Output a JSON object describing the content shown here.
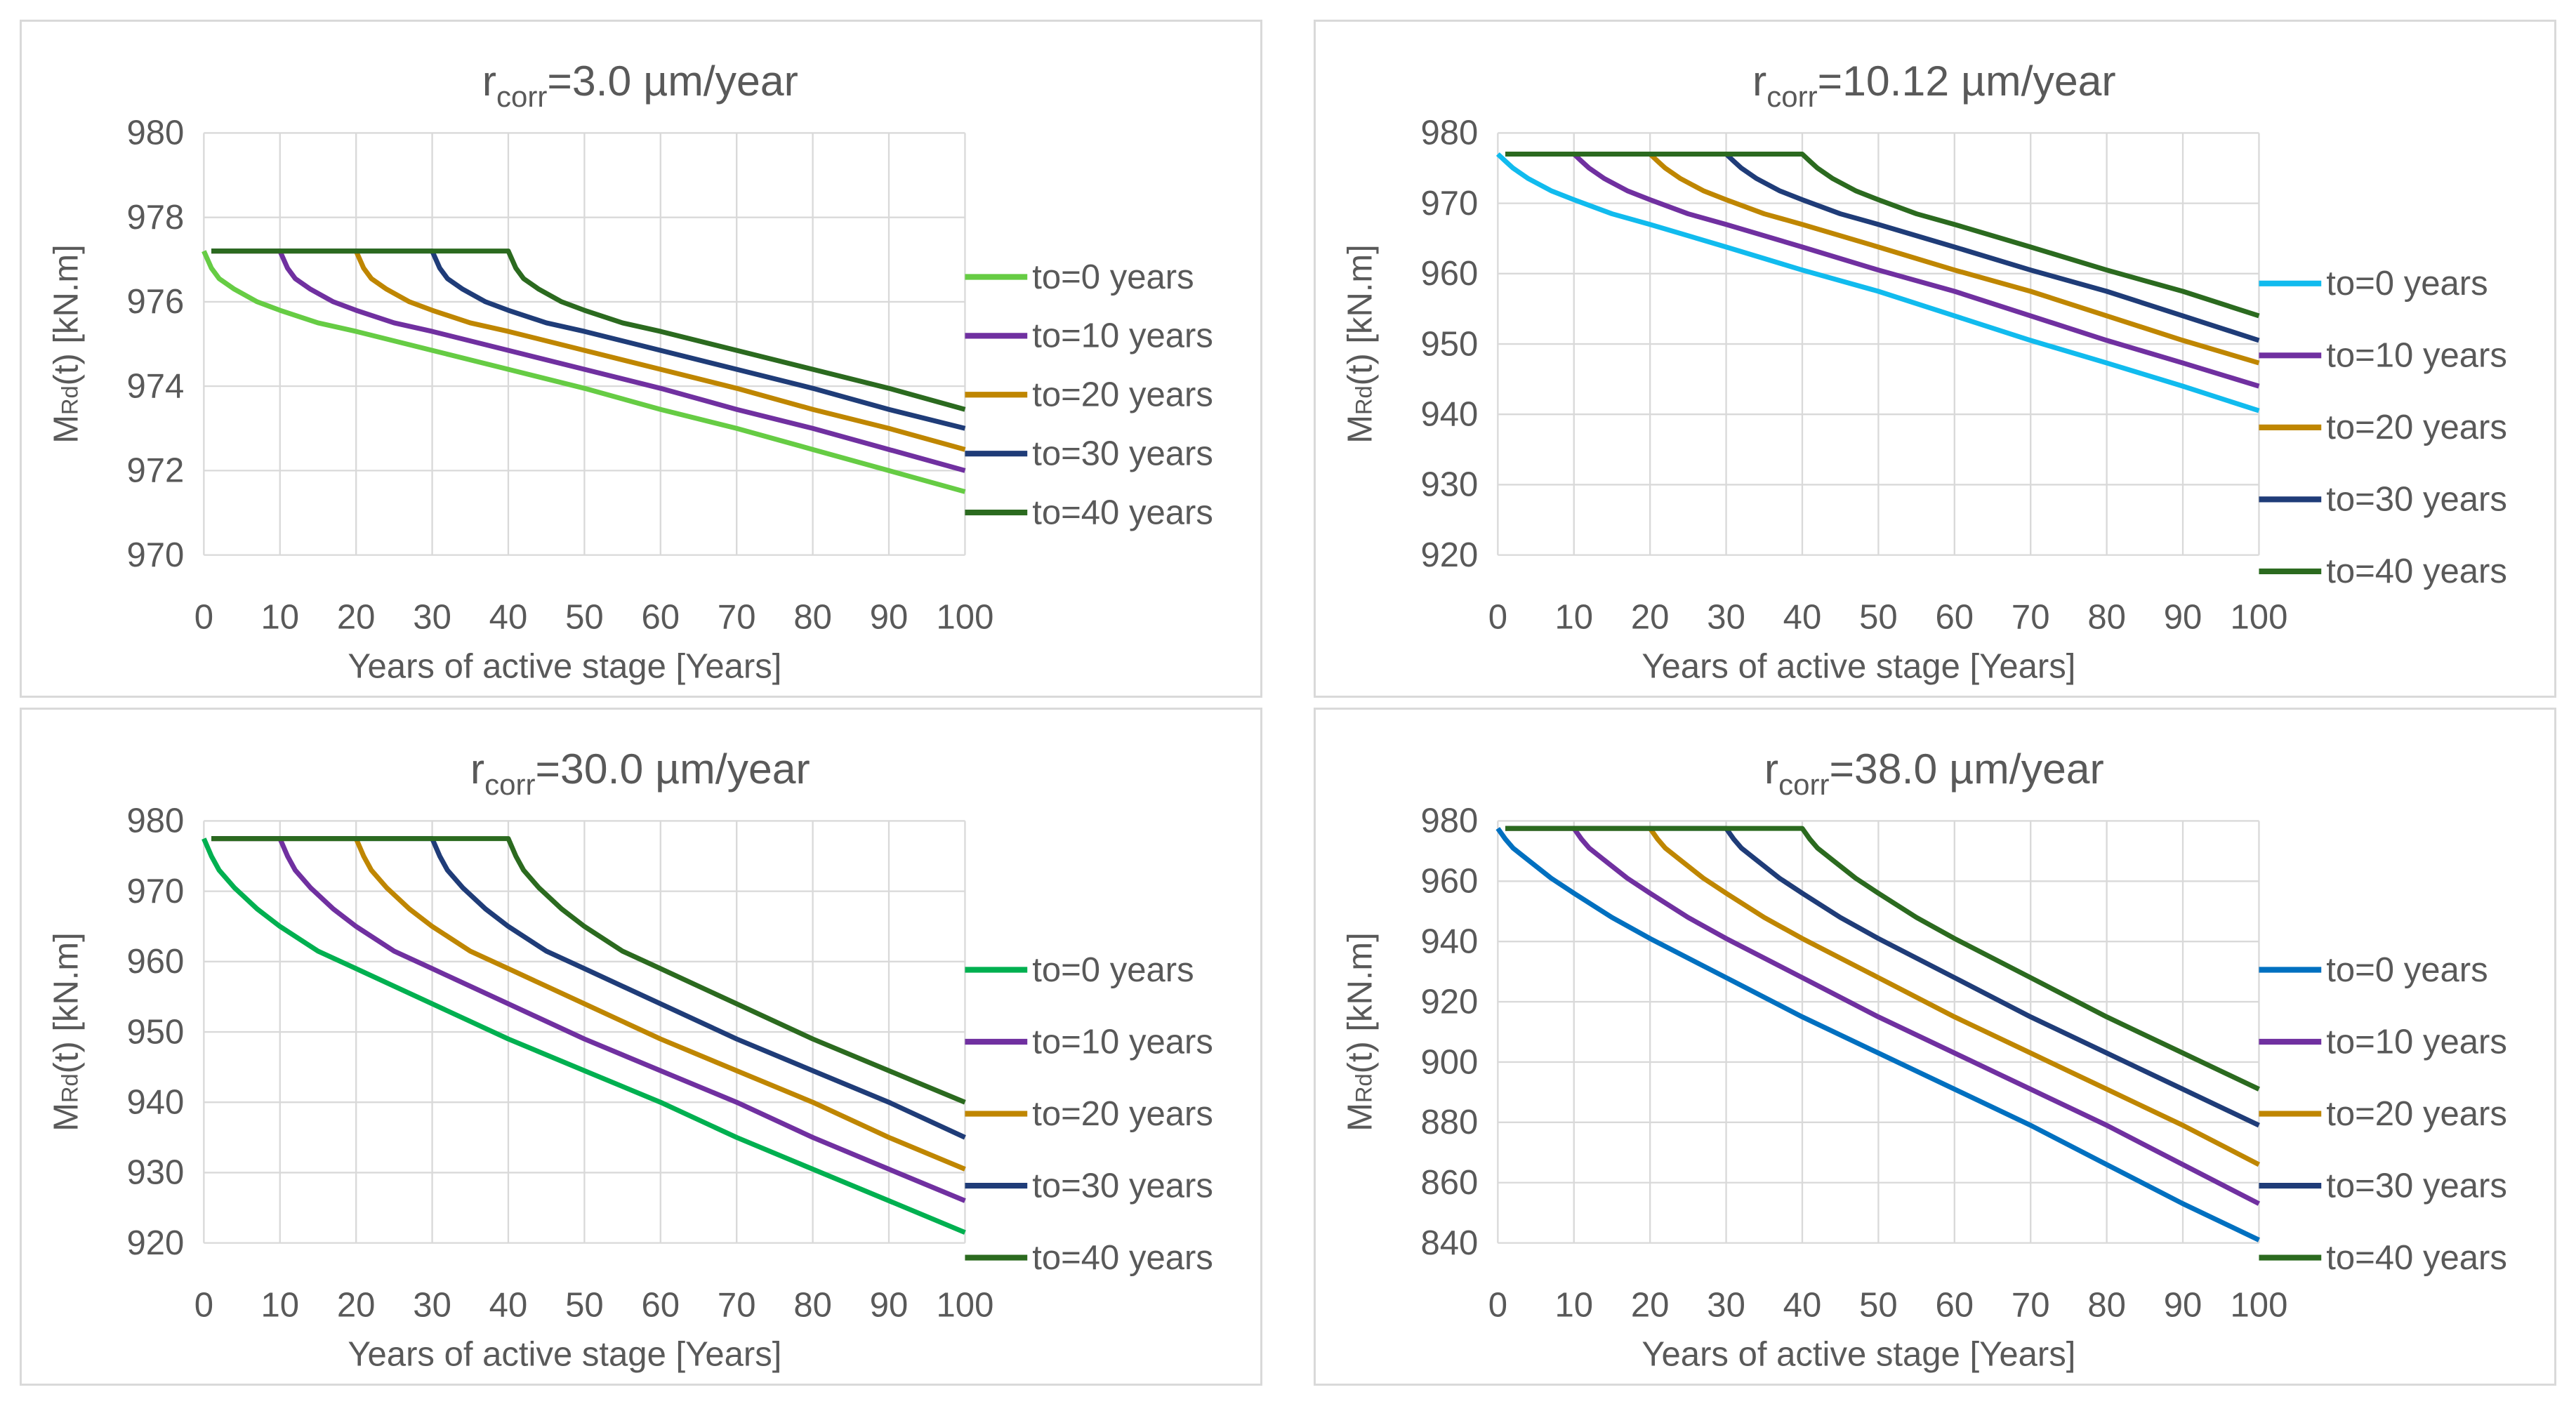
{
  "chart_data": [
    {
      "type": "line",
      "title_prefix": "r",
      "title_subscript": "corr",
      "title_value": "=3.0 µm/year",
      "ylabel_main": "M",
      "ylabel_sub": "Rd",
      "ylabel_rest": "(t) [kN.m]",
      "xlabel": "Years of active stage [Years]",
      "xlim": [
        0,
        100
      ],
      "xticks": [
        0,
        10,
        20,
        30,
        40,
        50,
        60,
        70,
        80,
        90,
        100
      ],
      "ylim": [
        970,
        980
      ],
      "yticks": [
        970,
        972,
        974,
        976,
        978,
        980
      ],
      "grid": true,
      "legend_position": "right",
      "series": [
        {
          "name": "to=0 years",
          "color": "#66cc44",
          "x": [
            0,
            1,
            2,
            4,
            7,
            10,
            15,
            20,
            30,
            40,
            50,
            60,
            70,
            80,
            90,
            100
          ],
          "y": [
            977.2,
            976.8,
            976.55,
            976.3,
            976.0,
            975.8,
            975.5,
            975.3,
            974.85,
            974.4,
            973.95,
            973.45,
            973.0,
            972.5,
            972.0,
            971.5
          ]
        },
        {
          "name": "to=10 years",
          "color": "#7030a0",
          "x": [
            1,
            10,
            11,
            12,
            14,
            17,
            20,
            25,
            30,
            40,
            50,
            60,
            70,
            80,
            90,
            100
          ],
          "y": [
            977.2,
            977.2,
            976.8,
            976.55,
            976.3,
            976.0,
            975.8,
            975.5,
            975.3,
            974.85,
            974.4,
            973.95,
            973.45,
            973.0,
            972.5,
            972.0
          ]
        },
        {
          "name": "to=20 years",
          "color": "#bf8600",
          "x": [
            1,
            20,
            21,
            22,
            24,
            27,
            30,
            35,
            40,
            50,
            60,
            70,
            80,
            90,
            100
          ],
          "y": [
            977.2,
            977.2,
            976.8,
            976.55,
            976.3,
            976.0,
            975.8,
            975.5,
            975.3,
            974.85,
            974.4,
            973.95,
            973.45,
            973.0,
            972.5
          ]
        },
        {
          "name": "to=30 years",
          "color": "#1f3c78",
          "x": [
            1,
            30,
            31,
            32,
            34,
            37,
            40,
            45,
            50,
            60,
            70,
            80,
            90,
            100
          ],
          "y": [
            977.2,
            977.2,
            976.8,
            976.55,
            976.3,
            976.0,
            975.8,
            975.5,
            975.3,
            974.85,
            974.4,
            973.95,
            973.45,
            973.0
          ]
        },
        {
          "name": "to=40 years",
          "color": "#2b6a1f",
          "x": [
            1,
            40,
            41,
            42,
            44,
            47,
            50,
            55,
            60,
            70,
            80,
            90,
            100
          ],
          "y": [
            977.2,
            977.2,
            976.8,
            976.55,
            976.3,
            976.0,
            975.8,
            975.5,
            975.3,
            974.85,
            974.4,
            973.95,
            973.45
          ]
        }
      ]
    },
    {
      "type": "line",
      "title_prefix": "r",
      "title_subscript": "corr",
      "title_value": "=10.12 µm/year",
      "ylabel_main": "M",
      "ylabel_sub": "Rd",
      "ylabel_rest": "(t) [kN.m]",
      "xlabel": "Years of active stage [Years]",
      "xlim": [
        0,
        100
      ],
      "xticks": [
        0,
        10,
        20,
        30,
        40,
        50,
        60,
        70,
        80,
        90,
        100
      ],
      "ylim": [
        920,
        980
      ],
      "yticks": [
        920,
        930,
        940,
        950,
        960,
        970,
        980
      ],
      "grid": true,
      "legend_position": "right",
      "series": [
        {
          "name": "to=0 years",
          "color": "#11bbee",
          "x": [
            0,
            1,
            2,
            4,
            7,
            10,
            15,
            20,
            30,
            40,
            50,
            60,
            70,
            80,
            90,
            100
          ],
          "y": [
            977,
            976,
            975,
            973.5,
            971.8,
            970.5,
            968.5,
            967,
            963.8,
            960.5,
            957.5,
            954,
            950.5,
            947.3,
            944,
            940.5
          ]
        },
        {
          "name": "to=10 years",
          "color": "#7030a0",
          "x": [
            1,
            10,
            11,
            12,
            14,
            17,
            20,
            25,
            30,
            40,
            50,
            60,
            70,
            80,
            90,
            100
          ],
          "y": [
            977,
            977,
            976,
            975,
            973.5,
            971.8,
            970.5,
            968.5,
            967,
            963.8,
            960.5,
            957.5,
            954,
            950.5,
            947.3,
            944
          ]
        },
        {
          "name": "to=20 years",
          "color": "#bf8600",
          "x": [
            1,
            20,
            21,
            22,
            24,
            27,
            30,
            35,
            40,
            50,
            60,
            70,
            80,
            90,
            100
          ],
          "y": [
            977,
            977,
            976,
            975,
            973.5,
            971.8,
            970.5,
            968.5,
            967,
            963.8,
            960.5,
            957.5,
            954,
            950.5,
            947.3
          ]
        },
        {
          "name": "to=30 years",
          "color": "#1f3c78",
          "x": [
            1,
            30,
            31,
            32,
            34,
            37,
            40,
            45,
            50,
            60,
            70,
            80,
            90,
            100
          ],
          "y": [
            977,
            977,
            976,
            975,
            973.5,
            971.8,
            970.5,
            968.5,
            967,
            963.8,
            960.5,
            957.5,
            954,
            950.5
          ]
        },
        {
          "name": "to=40 years",
          "color": "#2b6a1f",
          "x": [
            1,
            40,
            41,
            42,
            44,
            47,
            50,
            55,
            60,
            70,
            80,
            90,
            100
          ],
          "y": [
            977,
            977,
            976,
            975,
            973.5,
            971.8,
            970.5,
            968.5,
            967,
            963.8,
            960.5,
            957.5,
            954
          ]
        }
      ]
    },
    {
      "type": "line",
      "title_prefix": "r",
      "title_subscript": "corr",
      "title_value": "=30.0 µm/year",
      "ylabel_main": "M",
      "ylabel_sub": "Rd",
      "ylabel_rest": "(t) [kN.m]",
      "xlabel": "Years of active stage [Years]",
      "xlim": [
        0,
        100
      ],
      "xticks": [
        0,
        10,
        20,
        30,
        40,
        50,
        60,
        70,
        80,
        90,
        100
      ],
      "ylim": [
        920,
        980
      ],
      "yticks": [
        920,
        930,
        940,
        950,
        960,
        970,
        980
      ],
      "grid": true,
      "legend_position": "right",
      "series": [
        {
          "name": "to=0 years",
          "color": "#00b050",
          "x": [
            0,
            1,
            2,
            4,
            7,
            10,
            15,
            20,
            30,
            40,
            50,
            60,
            70,
            80,
            90,
            100
          ],
          "y": [
            977.5,
            975,
            973,
            970.5,
            967.5,
            965,
            961.5,
            959,
            954,
            949,
            944.5,
            940,
            935,
            930.5,
            926,
            921.5
          ]
        },
        {
          "name": "to=10 years",
          "color": "#7030a0",
          "x": [
            1,
            10,
            11,
            12,
            14,
            17,
            20,
            25,
            30,
            40,
            50,
            60,
            70,
            80,
            90,
            100
          ],
          "y": [
            977.5,
            977.5,
            975,
            973,
            970.5,
            967.5,
            965,
            961.5,
            959,
            954,
            949,
            944.5,
            940,
            935,
            930.5,
            926
          ]
        },
        {
          "name": "to=20 years",
          "color": "#bf8600",
          "x": [
            1,
            20,
            21,
            22,
            24,
            27,
            30,
            35,
            40,
            50,
            60,
            70,
            80,
            90,
            100
          ],
          "y": [
            977.5,
            977.5,
            975,
            973,
            970.5,
            967.5,
            965,
            961.5,
            959,
            954,
            949,
            944.5,
            940,
            935,
            930.5
          ]
        },
        {
          "name": "to=30 years",
          "color": "#1f3c78",
          "x": [
            1,
            30,
            31,
            32,
            34,
            37,
            40,
            45,
            50,
            60,
            70,
            80,
            90,
            100
          ],
          "y": [
            977.5,
            977.5,
            975,
            973,
            970.5,
            967.5,
            965,
            961.5,
            959,
            954,
            949,
            944.5,
            940,
            935
          ]
        },
        {
          "name": "to=40 years",
          "color": "#2b6a1f",
          "x": [
            1,
            40,
            41,
            42,
            44,
            47,
            50,
            55,
            60,
            70,
            80,
            90,
            100
          ],
          "y": [
            977.5,
            977.5,
            975,
            973,
            970.5,
            967.5,
            965,
            961.5,
            959,
            954,
            949,
            944.5,
            940
          ]
        }
      ]
    },
    {
      "type": "line",
      "title_prefix": "r",
      "title_subscript": "corr",
      "title_value": "=38.0 µm/year",
      "ylabel_main": "M",
      "ylabel_sub": "Rd",
      "ylabel_rest": "(t) [kN.m]",
      "xlabel": "Years of active stage [Years]",
      "xlim": [
        0,
        100
      ],
      "xticks": [
        0,
        10,
        20,
        30,
        40,
        50,
        60,
        70,
        80,
        90,
        100
      ],
      "ylim": [
        840,
        980
      ],
      "yticks": [
        840,
        860,
        880,
        900,
        920,
        940,
        960,
        980
      ],
      "grid": true,
      "legend_position": "right",
      "series": [
        {
          "name": "to=0 years",
          "color": "#0070c0",
          "x": [
            0,
            1,
            2,
            4,
            7,
            10,
            15,
            20,
            30,
            40,
            50,
            60,
            70,
            80,
            90,
            100
          ],
          "y": [
            977.5,
            974,
            971,
            967,
            961,
            956,
            948,
            941,
            928,
            915,
            903,
            891,
            879,
            866,
            853,
            841
          ]
        },
        {
          "name": "to=10 years",
          "color": "#7030a0",
          "x": [
            1,
            10,
            11,
            12,
            14,
            17,
            20,
            25,
            30,
            40,
            50,
            60,
            70,
            80,
            90,
            100
          ],
          "y": [
            977.5,
            977.5,
            974,
            971,
            967,
            961,
            956,
            948,
            941,
            928,
            915,
            903,
            891,
            879,
            866,
            853
          ]
        },
        {
          "name": "to=20 years",
          "color": "#bf8600",
          "x": [
            1,
            20,
            21,
            22,
            24,
            27,
            30,
            35,
            40,
            50,
            60,
            70,
            80,
            90,
            100
          ],
          "y": [
            977.5,
            977.5,
            974,
            971,
            967,
            961,
            956,
            948,
            941,
            928,
            915,
            903,
            891,
            879,
            866
          ]
        },
        {
          "name": "to=30 years",
          "color": "#1f3c78",
          "x": [
            1,
            30,
            31,
            32,
            34,
            37,
            40,
            45,
            50,
            60,
            70,
            80,
            90,
            100
          ],
          "y": [
            977.5,
            977.5,
            974,
            971,
            967,
            961,
            956,
            948,
            941,
            928,
            915,
            903,
            891,
            879
          ]
        },
        {
          "name": "to=40 years",
          "color": "#2b6a1f",
          "x": [
            1,
            40,
            41,
            42,
            44,
            47,
            50,
            55,
            60,
            70,
            80,
            90,
            100
          ],
          "y": [
            977.5,
            977.5,
            974,
            971,
            967,
            961,
            956,
            948,
            941,
            928,
            915,
            903,
            891
          ]
        }
      ]
    }
  ]
}
